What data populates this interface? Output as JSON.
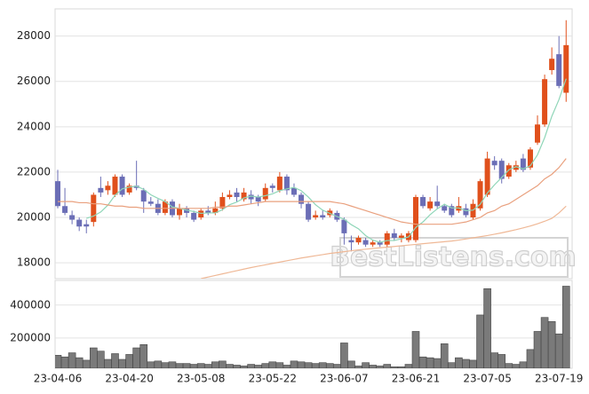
{
  "watermark": "BestListens.com",
  "chart_data": [
    {
      "type": "candlestick",
      "categories": [
        "23-04-06",
        null,
        null,
        null,
        null,
        null,
        null,
        null,
        null,
        null,
        "23-04-20",
        null,
        null,
        null,
        null,
        null,
        null,
        null,
        null,
        null,
        "23-05-08",
        null,
        null,
        null,
        null,
        null,
        null,
        null,
        null,
        null,
        "23-05-22",
        null,
        null,
        null,
        null,
        null,
        null,
        null,
        null,
        null,
        "23-06-07",
        null,
        null,
        null,
        null,
        null,
        null,
        null,
        null,
        null,
        "23-06-21",
        null,
        null,
        null,
        null,
        null,
        null,
        null,
        null,
        null,
        "23-07-05",
        null,
        null,
        null,
        null,
        null,
        null,
        null,
        null,
        null,
        "23-07-19",
        null
      ],
      "open": [
        21600,
        20500,
        20100,
        19900,
        19700,
        19800,
        21300,
        21200,
        21000,
        21800,
        21100,
        21400,
        21200,
        20700,
        20600,
        20200,
        20700,
        20100,
        20400,
        20200,
        20000,
        20300,
        20200,
        20400,
        20900,
        21100,
        20800,
        21000,
        20900,
        20800,
        21400,
        21200,
        21800,
        21300,
        21000,
        20600,
        20000,
        20100,
        20100,
        20200,
        19900,
        19000,
        18900,
        19000,
        18800,
        18900,
        18800,
        19300,
        19100,
        19000,
        19000,
        20900,
        20400,
        20700,
        20500,
        20500,
        20300,
        20400,
        20000,
        20400,
        21000,
        22500,
        22500,
        21800,
        22100,
        22600,
        22200,
        23300,
        24100,
        26500,
        27200,
        25500
      ],
      "high": [
        22100,
        21300,
        20300,
        20000,
        19900,
        21100,
        21800,
        21600,
        21900,
        21900,
        21500,
        22500,
        21300,
        20900,
        20800,
        20800,
        20800,
        20600,
        20500,
        20300,
        20400,
        20500,
        20700,
        21100,
        21200,
        21300,
        21300,
        21200,
        21000,
        21500,
        21500,
        22000,
        21900,
        21500,
        21100,
        20700,
        20300,
        20300,
        20400,
        20300,
        20000,
        19200,
        19200,
        19100,
        19000,
        19000,
        19400,
        19500,
        19300,
        19400,
        21000,
        21000,
        20900,
        21400,
        20600,
        20600,
        20900,
        20600,
        20800,
        21700,
        22900,
        22700,
        22600,
        22400,
        22500,
        22800,
        23100,
        24500,
        26300,
        27500,
        28000,
        28700
      ],
      "low": [
        20400,
        20100,
        19700,
        19400,
        19300,
        19600,
        20900,
        21000,
        20900,
        20900,
        21000,
        21200,
        20200,
        20500,
        20100,
        20100,
        20000,
        19900,
        20000,
        19800,
        19900,
        20100,
        20100,
        20300,
        20800,
        20700,
        20700,
        20600,
        20500,
        20700,
        21100,
        21100,
        21000,
        20900,
        20400,
        19800,
        19900,
        19900,
        20000,
        19800,
        18800,
        18500,
        18800,
        18700,
        18700,
        18700,
        18700,
        19000,
        18900,
        18900,
        18900,
        20400,
        20300,
        20400,
        20200,
        20000,
        20200,
        20000,
        19900,
        20300,
        20900,
        22100,
        21500,
        21700,
        22000,
        22000,
        22100,
        23200,
        24000,
        26300,
        25700,
        25100
      ],
      "close": [
        20500,
        20200,
        19900,
        19600,
        19600,
        21000,
        21100,
        21400,
        21800,
        21000,
        21400,
        21300,
        20700,
        20600,
        20200,
        20700,
        20100,
        20400,
        20200,
        19900,
        20300,
        20200,
        20400,
        20900,
        21000,
        20900,
        21100,
        20800,
        20700,
        21300,
        21300,
        21800,
        21200,
        21000,
        20600,
        19900,
        20100,
        20000,
        20300,
        19900,
        19300,
        18900,
        19100,
        18800,
        18900,
        18800,
        19300,
        19100,
        19200,
        19300,
        20900,
        20500,
        20700,
        20500,
        20300,
        20100,
        20500,
        20100,
        20600,
        21600,
        22600,
        22300,
        21700,
        22300,
        22300,
        22100,
        23000,
        24100,
        26100,
        27000,
        25800,
        27600
      ],
      "up_color": "#e0501c",
      "down_color": "#6b6eb6",
      "series": [
        {
          "color": "#8fd6b8",
          "values": [
            null,
            null,
            null,
            null,
            19960,
            20060,
            20240,
            20540,
            20980,
            21260,
            21340,
            21380,
            21240,
            21000,
            20840,
            20700,
            20460,
            20400,
            20320,
            20260,
            20180,
            20200,
            20200,
            20340,
            20560,
            20680,
            20860,
            20940,
            20900,
            20960,
            21040,
            21180,
            21260,
            21320,
            21180,
            20900,
            20560,
            20320,
            20180,
            20040,
            19920,
            19680,
            19500,
            19200,
            19000,
            18900,
            18980,
            18980,
            19060,
            19140,
            19560,
            19800,
            20120,
            20380,
            20580,
            20420,
            20420,
            20300,
            20320,
            20580,
            21080,
            21440,
            21760,
            22100,
            22240,
            22140,
            22280,
            22760,
            23520,
            24460,
            25200,
            26120
          ]
        },
        {
          "color": "#e9a07e",
          "values": [
            20700,
            20700,
            20700,
            20650,
            20650,
            20600,
            20600,
            20550,
            20500,
            20500,
            20450,
            20450,
            20400,
            20400,
            20400,
            20400,
            20400,
            20400,
            20400,
            20400,
            20400,
            20400,
            20450,
            20450,
            20500,
            20500,
            20550,
            20600,
            20650,
            20700,
            20700,
            20700,
            20700,
            20700,
            20700,
            20700,
            20700,
            20700,
            20700,
            20650,
            20600,
            20500,
            20400,
            20300,
            20200,
            20100,
            20000,
            19900,
            19800,
            19750,
            19700,
            19700,
            19700,
            19700,
            19700,
            19700,
            19750,
            19800,
            19900,
            20000,
            20200,
            20300,
            20500,
            20600,
            20800,
            21000,
            21200,
            21400,
            21700,
            21900,
            22200,
            22600
          ]
        },
        {
          "color": "#efb896",
          "values": [
            null,
            null,
            null,
            null,
            null,
            null,
            null,
            null,
            null,
            null,
            null,
            null,
            null,
            null,
            null,
            null,
            null,
            null,
            null,
            null,
            17300,
            17370,
            17440,
            17510,
            17580,
            17650,
            17720,
            17790,
            17850,
            17910,
            17970,
            18030,
            18090,
            18150,
            18210,
            18260,
            18310,
            18360,
            18410,
            18450,
            18490,
            18530,
            18570,
            18600,
            18630,
            18660,
            18690,
            18720,
            18750,
            18780,
            18810,
            18840,
            18870,
            18900,
            18930,
            18960,
            19000,
            19050,
            19100,
            19150,
            19200,
            19260,
            19320,
            19390,
            19460,
            19540,
            19620,
            19720,
            19830,
            19960,
            20200,
            20500
          ]
        }
      ],
      "ylim": [
        17300,
        29200
      ],
      "yticks": [
        18000,
        20000,
        22000,
        24000,
        26000,
        28000
      ],
      "grid": true
    },
    {
      "type": "bar",
      "values": [
        95000,
        85000,
        110000,
        80000,
        65000,
        140000,
        120000,
        70000,
        105000,
        70000,
        100000,
        140000,
        160000,
        55000,
        60000,
        50000,
        55000,
        45000,
        45000,
        40000,
        45000,
        40000,
        55000,
        60000,
        40000,
        35000,
        30000,
        40000,
        35000,
        45000,
        55000,
        50000,
        35000,
        60000,
        55000,
        50000,
        45000,
        50000,
        45000,
        40000,
        170000,
        60000,
        30000,
        50000,
        35000,
        30000,
        40000,
        25000,
        25000,
        40000,
        240000,
        85000,
        80000,
        75000,
        165000,
        50000,
        80000,
        70000,
        65000,
        340000,
        500000,
        110000,
        100000,
        45000,
        40000,
        55000,
        130000,
        240000,
        325000,
        300000,
        225000,
        515000
      ],
      "color": "#7a7a7a",
      "ylim": [
        16000,
        550000
      ],
      "yticks": [
        200000,
        400000
      ],
      "grid": true
    }
  ]
}
